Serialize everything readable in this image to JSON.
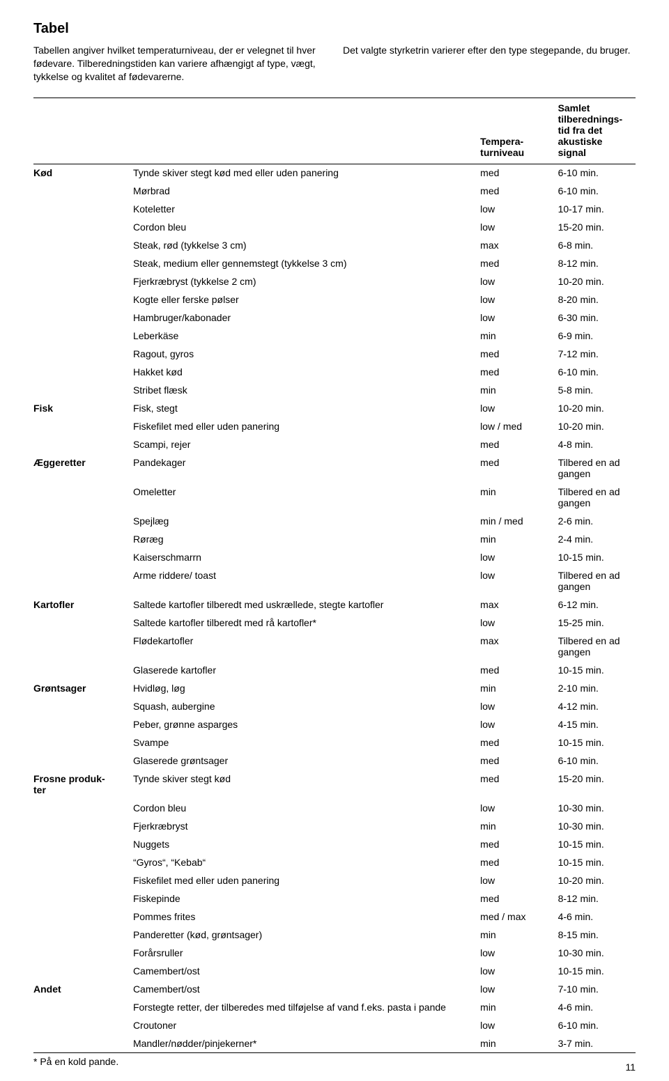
{
  "title": "Tabel",
  "intro_left": "Tabellen angiver hvilket temperaturniveau, der er velegnet til hver fødevare. Tilberedningstiden kan variere afhængigt af type, vægt, tykkelse og kvalitet af fødevarerne.",
  "intro_right": "Det valgte styrketrin varierer efter den type stegepande, du bruger.",
  "head_temp": "Tempera-\nturniveau",
  "head_time": "Samlet tilberednings-\ntid fra det akustiske signal",
  "footnote": "* På en kold pande.",
  "page_number": "11",
  "groups": [
    {
      "category": "Kød",
      "rows": [
        {
          "item": "Tynde skiver stegt kød med eller uden panering",
          "temp": "med",
          "time": "6-10 min."
        },
        {
          "item": "Mørbrad",
          "temp": "med",
          "time": "6-10 min."
        },
        {
          "item": "Koteletter",
          "temp": "low",
          "time": "10-17 min."
        },
        {
          "item": "Cordon bleu",
          "temp": "low",
          "time": "15-20 min."
        },
        {
          "item": "Steak, rød (tykkelse 3 cm)",
          "temp": "max",
          "time": "6-8 min."
        },
        {
          "item": "Steak, medium eller gennemstegt (tykkelse 3 cm)",
          "temp": "med",
          "time": "8-12 min."
        },
        {
          "item": "Fjerkræbryst (tykkelse 2 cm)",
          "temp": "low",
          "time": "10-20 min."
        },
        {
          "item": "Kogte eller ferske pølser",
          "temp": "low",
          "time": "8-20 min."
        },
        {
          "item": "Hambruger/kabonader",
          "temp": "low",
          "time": "6-30 min."
        },
        {
          "item": "Leberkäse",
          "temp": "min",
          "time": "6-9 min."
        },
        {
          "item": "Ragout, gyros",
          "temp": "med",
          "time": "7-12 min."
        },
        {
          "item": "Hakket kød",
          "temp": "med",
          "time": "6-10 min."
        },
        {
          "item": "Stribet flæsk",
          "temp": "min",
          "time": "5-8 min."
        }
      ]
    },
    {
      "category": "Fisk",
      "rows": [
        {
          "item": "Fisk, stegt",
          "temp": "low",
          "time": "10-20 min."
        },
        {
          "item": "Fiskefilet med eller uden panering",
          "temp": "low / med",
          "time": "10-20 min."
        },
        {
          "item": "Scampi, rejer",
          "temp": "med",
          "time": "4-8 min."
        }
      ]
    },
    {
      "category": "Æggeretter",
      "rows": [
        {
          "item": "Pandekager",
          "temp": "med",
          "time": "Tilbered en ad gangen"
        },
        {
          "item": "Omeletter",
          "temp": "min",
          "time": "Tilbered en ad gangen"
        },
        {
          "item": "Spejlæg",
          "temp": "min / med",
          "time": "2-6 min."
        },
        {
          "item": "Røræg",
          "temp": "min",
          "time": "2-4 min."
        },
        {
          "item": "Kaiserschmarrn",
          "temp": "low",
          "time": "10-15 min."
        },
        {
          "item": "Arme riddere/ toast",
          "temp": "low",
          "time": "Tilbered en ad gangen"
        }
      ]
    },
    {
      "category": "Kartofler",
      "rows": [
        {
          "item": "Saltede kartofler tilberedt med uskrællede, stegte kartofler",
          "temp": "max",
          "time": "6-12 min."
        },
        {
          "item": "Saltede kartofler tilberedt med rå kartofler*",
          "temp": "low",
          "time": "15-25 min."
        },
        {
          "item": "Flødekartofler",
          "temp": "max",
          "time": "Tilbered en ad gangen"
        },
        {
          "item": "Glaserede kartofler",
          "temp": "med",
          "time": "10-15 min."
        }
      ]
    },
    {
      "category": "Grøntsager",
      "rows": [
        {
          "item": "Hvidløg, løg",
          "temp": "min",
          "time": "2-10 min."
        },
        {
          "item": "Squash, aubergine",
          "temp": "low",
          "time": "4-12 min."
        },
        {
          "item": "Peber, grønne asparges",
          "temp": "low",
          "time": "4-15 min."
        },
        {
          "item": "Svampe",
          "temp": "med",
          "time": "10-15 min."
        },
        {
          "item": "Glaserede grøntsager",
          "temp": "med",
          "time": "6-10 min."
        }
      ]
    },
    {
      "category": "Frosne produk-\nter",
      "rows": [
        {
          "item": "Tynde skiver stegt kød",
          "temp": "med",
          "time": "15-20 min."
        },
        {
          "item": "Cordon bleu",
          "temp": "low",
          "time": "10-30 min."
        },
        {
          "item": "Fjerkræbryst",
          "temp": "min",
          "time": "10-30 min."
        },
        {
          "item": "Nuggets",
          "temp": "med",
          "time": "10-15 min."
        },
        {
          "item": "“Gyros“, “Kebab“",
          "temp": "med",
          "time": "10-15 min."
        },
        {
          "item": "Fiskefilet med eller uden panering",
          "temp": "low",
          "time": "10-20 min."
        },
        {
          "item": "Fiskepinde",
          "temp": "med",
          "time": "8-12 min."
        },
        {
          "item": "Pommes frites",
          "temp": "med / max",
          "time": "4-6 min."
        },
        {
          "item": "Panderetter (kød, grøntsager)",
          "temp": "min",
          "time": "8-15 min."
        },
        {
          "item": "Forårsruller",
          "temp": "low",
          "time": "10-30 min."
        },
        {
          "item": "Camembert/ost",
          "temp": "low",
          "time": "10-15 min."
        }
      ]
    },
    {
      "category": "Andet",
      "rows": [
        {
          "item": "Camembert/ost",
          "temp": "low",
          "time": "7-10 min."
        },
        {
          "item": "Forstegte retter, der tilberedes med tilføjelse af vand f.eks. pasta i pande",
          "temp": "min",
          "time": "4-6 min."
        },
        {
          "item": "Croutoner",
          "temp": "low",
          "time": "6-10 min."
        },
        {
          "item": "Mandler/nødder/pinjekerner*",
          "temp": "min",
          "time": "3-7 min."
        }
      ]
    }
  ]
}
